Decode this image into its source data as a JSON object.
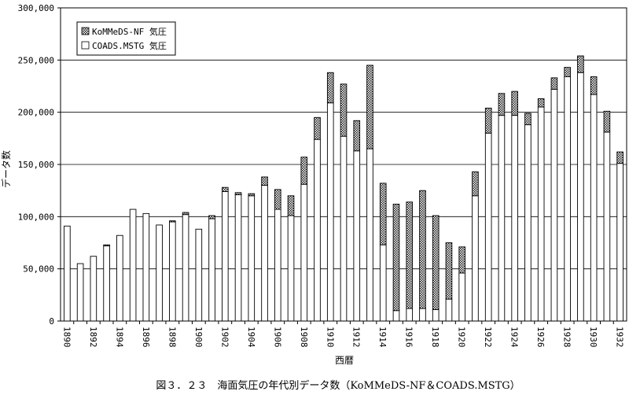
{
  "chart_data": {
    "type": "bar",
    "stacked": true,
    "title": "",
    "caption": "図３．２３　海面気圧の年代別データ数（KoMMeDS-NF＆COADS.MSTG）",
    "xlabel": "西暦",
    "ylabel": "データ数",
    "ylim": [
      0,
      300000
    ],
    "yticks": [
      0,
      50000,
      100000,
      150000,
      200000,
      250000,
      300000
    ],
    "ytick_labels": [
      "0",
      "50,000",
      "100,000",
      "150,000",
      "200,000",
      "250,000",
      "300,000"
    ],
    "grid": true,
    "legend_position": "top-left",
    "categories": [
      1890,
      1891,
      1892,
      1893,
      1894,
      1895,
      1896,
      1897,
      1898,
      1899,
      1900,
      1901,
      1902,
      1903,
      1904,
      1905,
      1906,
      1907,
      1908,
      1909,
      1910,
      1911,
      1912,
      1913,
      1914,
      1915,
      1916,
      1917,
      1918,
      1919,
      1920,
      1921,
      1922,
      1923,
      1924,
      1925,
      1926,
      1927,
      1928,
      1929,
      1930,
      1931,
      1932
    ],
    "xtick_labels": [
      "1890",
      "1892",
      "1894",
      "1896",
      "1898",
      "1900",
      "1902",
      "1904",
      "1906",
      "1908",
      "1910",
      "1912",
      "1914",
      "1916",
      "1918",
      "1920",
      "1922",
      "1924",
      "1926",
      "1928",
      "1930",
      "1932"
    ],
    "series": [
      {
        "name": "COADS.MSTG 気圧",
        "pattern": "white",
        "values": [
          91000,
          55000,
          62000,
          72000,
          82000,
          107000,
          103000,
          92000,
          95000,
          102000,
          88000,
          98000,
          124000,
          121000,
          120000,
          130000,
          107000,
          101000,
          131000,
          174000,
          209000,
          177000,
          163000,
          165000,
          73000,
          10000,
          12000,
          12000,
          11000,
          21000,
          46000,
          120000,
          180000,
          197000,
          197000,
          188000,
          205000,
          222000,
          234000,
          238000,
          217000,
          181000,
          151000
        ]
      },
      {
        "name": "KoMMeDS-NF 気圧",
        "pattern": "hatched",
        "values": [
          0,
          0,
          0,
          1000,
          0,
          0,
          0,
          0,
          1000,
          2000,
          0,
          3000,
          4000,
          2000,
          2000,
          8000,
          19000,
          19000,
          26000,
          21000,
          29000,
          50000,
          29000,
          80000,
          59000,
          102000,
          102000,
          113000,
          90000,
          54000,
          25000,
          23000,
          24000,
          21000,
          23000,
          11000,
          8000,
          11000,
          9000,
          16000,
          17000,
          20000,
          11000
        ]
      }
    ]
  }
}
